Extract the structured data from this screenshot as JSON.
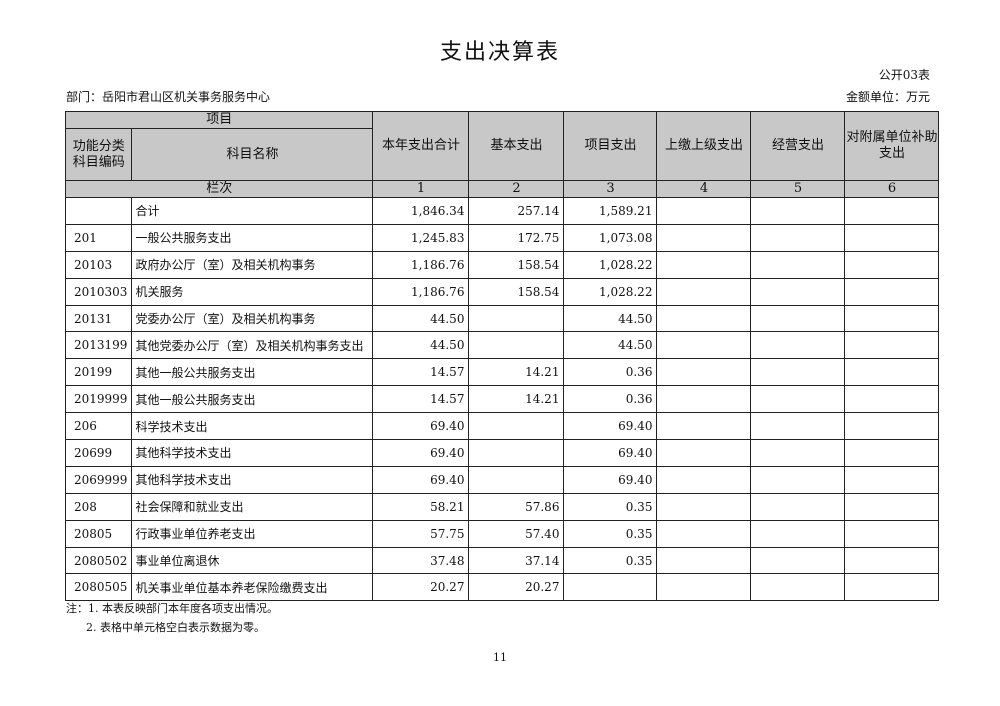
{
  "title": "支出决算表",
  "table_code": "公开03表",
  "department": "部门：岳阳市君山区机关事务服务中心",
  "unit": "金额单位：万元",
  "headers": {
    "project": "项目",
    "func_code": "功能分类科目编码",
    "subject_name": "科目名称",
    "columns": [
      "本年支出合计",
      "基本支出",
      "项目支出",
      "上缴上级支出",
      "经营支出",
      "对附属单位补助支出"
    ],
    "row_index_label": "栏次",
    "column_numbers": [
      "1",
      "2",
      "3",
      "4",
      "5",
      "6"
    ]
  },
  "rows": [
    {
      "code": "",
      "name": "合计",
      "values": [
        "1,846.34",
        "257.14",
        "1,589.21",
        "",
        "",
        ""
      ]
    },
    {
      "code": "201",
      "name": "一般公共服务支出",
      "values": [
        "1,245.83",
        "172.75",
        "1,073.08",
        "",
        "",
        ""
      ]
    },
    {
      "code": "20103",
      "name": "政府办公厅（室）及相关机构事务",
      "values": [
        "1,186.76",
        "158.54",
        "1,028.22",
        "",
        "",
        ""
      ]
    },
    {
      "code": "2010303",
      "name": "机关服务",
      "values": [
        "1,186.76",
        "158.54",
        "1,028.22",
        "",
        "",
        ""
      ]
    },
    {
      "code": "20131",
      "name": "党委办公厅（室）及相关机构事务",
      "values": [
        "44.50",
        "",
        "44.50",
        "",
        "",
        ""
      ]
    },
    {
      "code": "2013199",
      "name": "其他党委办公厅（室）及相关机构事务支出",
      "values": [
        "44.50",
        "",
        "44.50",
        "",
        "",
        ""
      ]
    },
    {
      "code": "20199",
      "name": "其他一般公共服务支出",
      "values": [
        "14.57",
        "14.21",
        "0.36",
        "",
        "",
        ""
      ]
    },
    {
      "code": "2019999",
      "name": "其他一般公共服务支出",
      "values": [
        "14.57",
        "14.21",
        "0.36",
        "",
        "",
        ""
      ]
    },
    {
      "code": "206",
      "name": "科学技术支出",
      "values": [
        "69.40",
        "",
        "69.40",
        "",
        "",
        ""
      ]
    },
    {
      "code": "20699",
      "name": "其他科学技术支出",
      "values": [
        "69.40",
        "",
        "69.40",
        "",
        "",
        ""
      ]
    },
    {
      "code": "2069999",
      "name": "其他科学技术支出",
      "values": [
        "69.40",
        "",
        "69.40",
        "",
        "",
        ""
      ]
    },
    {
      "code": "208",
      "name": "社会保障和就业支出",
      "values": [
        "58.21",
        "57.86",
        "0.35",
        "",
        "",
        ""
      ]
    },
    {
      "code": "20805",
      "name": "行政事业单位养老支出",
      "values": [
        "57.75",
        "57.40",
        "0.35",
        "",
        "",
        ""
      ]
    },
    {
      "code": "2080502",
      "name": "事业单位离退休",
      "values": [
        "37.48",
        "37.14",
        "0.35",
        "",
        "",
        ""
      ]
    },
    {
      "code": "2080505",
      "name": "机关事业单位基本养老保险缴费支出",
      "values": [
        "20.27",
        "20.27",
        "",
        "",
        "",
        ""
      ]
    }
  ],
  "notes": [
    "注：1. 本表反映部门本年度各项支出情况。",
    "2. 表格中单元格空白表示数据为零。"
  ],
  "page_number": "11"
}
